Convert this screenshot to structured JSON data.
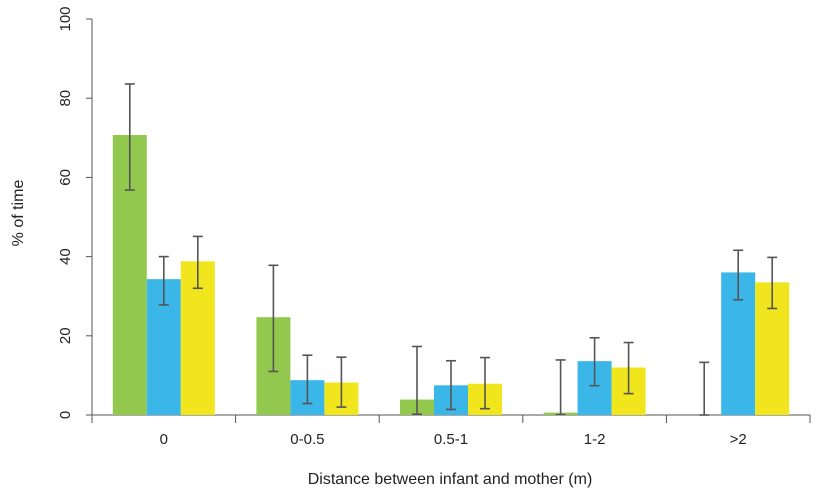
{
  "chart_data": {
    "type": "bar",
    "xlabel": "Distance between infant and mother (m)",
    "ylabel": "% of time",
    "ylim": [
      0,
      100
    ],
    "yticks": [
      0,
      20,
      40,
      60,
      80,
      100
    ],
    "ytick_labels": [
      "0",
      "20",
      "40",
      "60",
      "80",
      "100"
    ],
    "categories": [
      "0",
      "0-0.5",
      "0.5-1",
      "1-2",
      ">2"
    ],
    "grid": false,
    "legend": "none",
    "series": [
      {
        "color": "#92c84e",
        "values": [
          70.7,
          24.7,
          3.9,
          0.6,
          0.0
        ],
        "err_low": [
          56.8,
          11.0,
          0.2,
          0.1,
          0.0
        ],
        "err_high": [
          83.6,
          37.8,
          17.3,
          13.9,
          13.3
        ]
      },
      {
        "color": "#3ab6e8",
        "values": [
          34.3,
          8.8,
          7.5,
          13.6,
          36.0
        ],
        "err_low": [
          27.8,
          2.9,
          1.4,
          7.4,
          29.1
        ],
        "err_high": [
          40.0,
          15.1,
          13.7,
          19.5,
          41.6
        ]
      },
      {
        "color": "#f1e61d",
        "values": [
          38.8,
          8.2,
          7.9,
          12.0,
          33.5
        ],
        "err_low": [
          32.0,
          2.0,
          1.6,
          5.4,
          26.9
        ],
        "err_high": [
          45.1,
          14.6,
          14.5,
          18.3,
          39.8
        ]
      }
    ]
  }
}
